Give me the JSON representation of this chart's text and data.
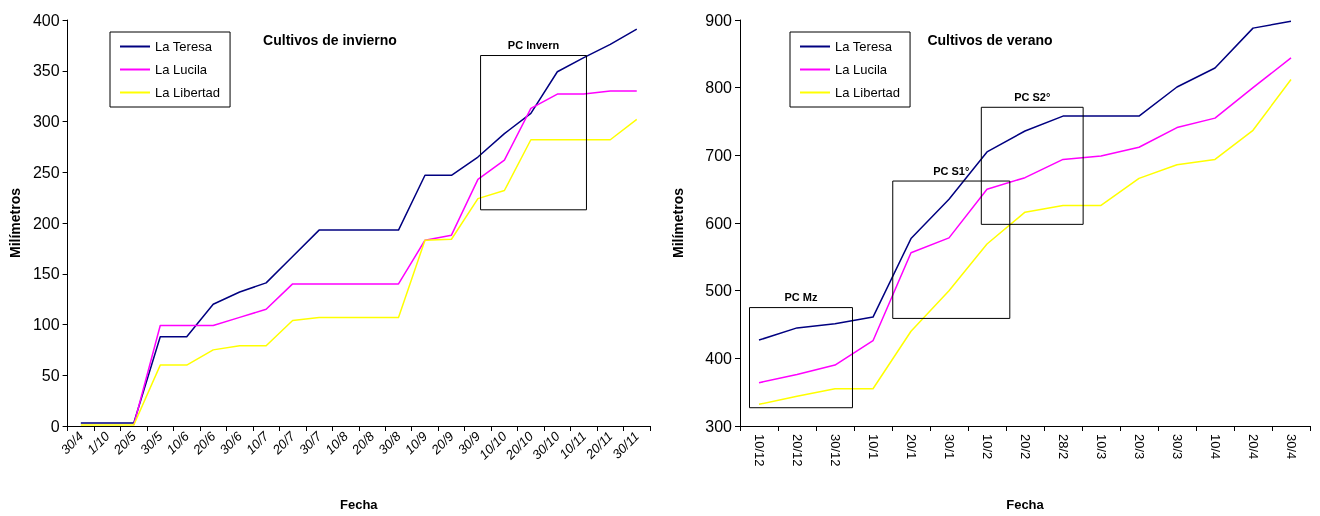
{
  "chart_data": [
    {
      "type": "line",
      "title": "Cultivos de invierno",
      "xlabel": "Fecha",
      "ylabel": "Milímetros",
      "categories": [
        "30/4",
        "1/10",
        "20/5",
        "30/5",
        "10/6",
        "20/6",
        "30/6",
        "10/7",
        "20/7",
        "30/7",
        "10/8",
        "20/8",
        "30/8",
        "10/9",
        "20/9",
        "30/9",
        "10/10",
        "20/10",
        "30/10",
        "10/11",
        "20/11",
        "30/11"
      ],
      "series": [
        {
          "name": "La Teresa",
          "color": "#000080",
          "values": [
            3,
            3,
            3,
            88,
            88,
            120,
            132,
            141,
            167,
            193,
            193,
            193,
            193,
            247,
            247,
            265,
            288,
            308,
            349,
            363,
            376,
            391
          ]
        },
        {
          "name": "La Lucila",
          "color": "#ff00ff",
          "values": [
            null,
            null,
            1,
            99,
            99,
            99,
            107,
            115,
            140,
            140,
            140,
            140,
            140,
            183,
            188,
            243,
            262,
            313,
            327,
            327,
            330,
            330
          ]
        },
        {
          "name": "La Libertad",
          "color": "#ffff00",
          "values": [
            1,
            1,
            1,
            60,
            60,
            75,
            79,
            79,
            104,
            107,
            107,
            107,
            107,
            183,
            184,
            224,
            232,
            282,
            282,
            282,
            282,
            302
          ]
        }
      ],
      "ylim": [
        0,
        400
      ],
      "yticks": [
        0,
        50,
        100,
        150,
        200,
        250,
        300,
        350,
        400
      ],
      "annotations": [
        "PC Invern"
      ],
      "grid": false,
      "legend": "top left",
      "marker": "none",
      "line_style": "solid"
    },
    {
      "type": "line",
      "title": "Cultivos de verano",
      "xlabel": "Fecha",
      "ylabel": "Milímetros",
      "categories": [
        "10/12",
        "20/12",
        "30/12",
        "10/1",
        "20/1",
        "30/1",
        "10/2",
        "20/2",
        "28/2",
        "10/3",
        "20/3",
        "30/3",
        "10/4",
        "20/4",
        "30/4"
      ],
      "series": [
        {
          "name": "La Teresa",
          "color": "#000080",
          "values": [
            427,
            445,
            451,
            461,
            577,
            635,
            705,
            736,
            758,
            758,
            758,
            801,
            829,
            888,
            898
          ]
        },
        {
          "name": "La Lucila",
          "color": "#ff00ff",
          "values": [
            364,
            376,
            390,
            426,
            556,
            578,
            650,
            667,
            694,
            699,
            712,
            741,
            755,
            800,
            844
          ]
        },
        {
          "name": "La Libertad",
          "color": "#ffff00",
          "values": [
            332,
            344,
            355,
            355,
            440,
            500,
            569,
            616,
            626,
            626,
            666,
            686,
            694,
            737,
            812
          ]
        }
      ],
      "ylim": [
        300,
        900
      ],
      "yticks": [
        300,
        400,
        500,
        600,
        700,
        800,
        900
      ],
      "annotations": [
        "PC Mz",
        "PC S1°",
        "PC S2°"
      ],
      "grid": false,
      "legend": "top left",
      "marker": "none",
      "line_style": "solid"
    }
  ]
}
